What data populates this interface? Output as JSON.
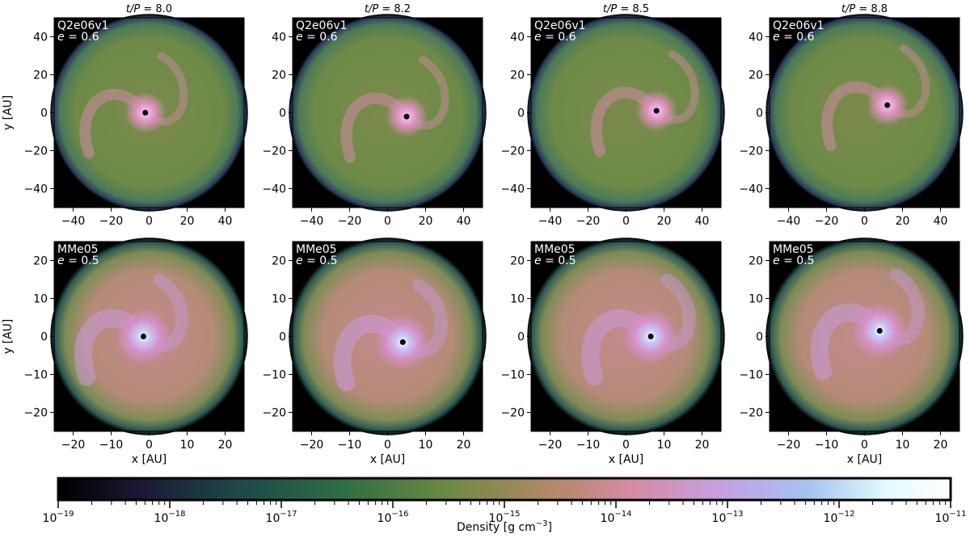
{
  "figure": {
    "column_titles": [
      {
        "prefix": "t/P",
        "value": "= 8.0"
      },
      {
        "prefix": "t/P",
        "value": "= 8.2"
      },
      {
        "prefix": "t/P",
        "value": "= 8.5"
      },
      {
        "prefix": "t/P",
        "value": "= 8.8"
      }
    ],
    "rows": [
      {
        "model": "Q2e06v1",
        "ecc_var": "e",
        "ecc_value": "= 0.6",
        "y_ticks": [
          "40",
          "20",
          "0",
          "−20",
          "−40"
        ],
        "x_ticks": [
          "−40",
          "−20",
          "0",
          "20",
          "40"
        ],
        "ylabel": "y [AU]",
        "xlabel": ""
      },
      {
        "model": "MMe05",
        "ecc_var": "e",
        "ecc_value": "= 0.5",
        "y_ticks": [
          "20",
          "10",
          "0",
          "−10",
          "−20"
        ],
        "x_ticks": [
          "−20",
          "−10",
          "0",
          "10",
          "20"
        ],
        "ylabel": "y [AU]",
        "xlabel": "x [AU]"
      }
    ],
    "colorbar": {
      "label": "Density [g cm",
      "label_exp": "−3",
      "label_end": "]",
      "scale": "log",
      "ticks": [
        {
          "base": "10",
          "exp": "−19"
        },
        {
          "base": "10",
          "exp": "−18"
        },
        {
          "base": "10",
          "exp": "−17"
        },
        {
          "base": "10",
          "exp": "−16"
        },
        {
          "base": "10",
          "exp": "−15"
        },
        {
          "base": "10",
          "exp": "−14"
        },
        {
          "base": "10",
          "exp": "−13"
        },
        {
          "base": "10",
          "exp": "−12"
        },
        {
          "base": "10",
          "exp": "−11"
        }
      ],
      "colormap": [
        "#000000",
        "#1c1836",
        "#1f4a4a",
        "#2f6f45",
        "#6b8a42",
        "#b48a6a",
        "#d38aa0",
        "#c9a0e2",
        "#a8c4f0",
        "#e8ffff",
        "#ffffff"
      ]
    }
  }
}
